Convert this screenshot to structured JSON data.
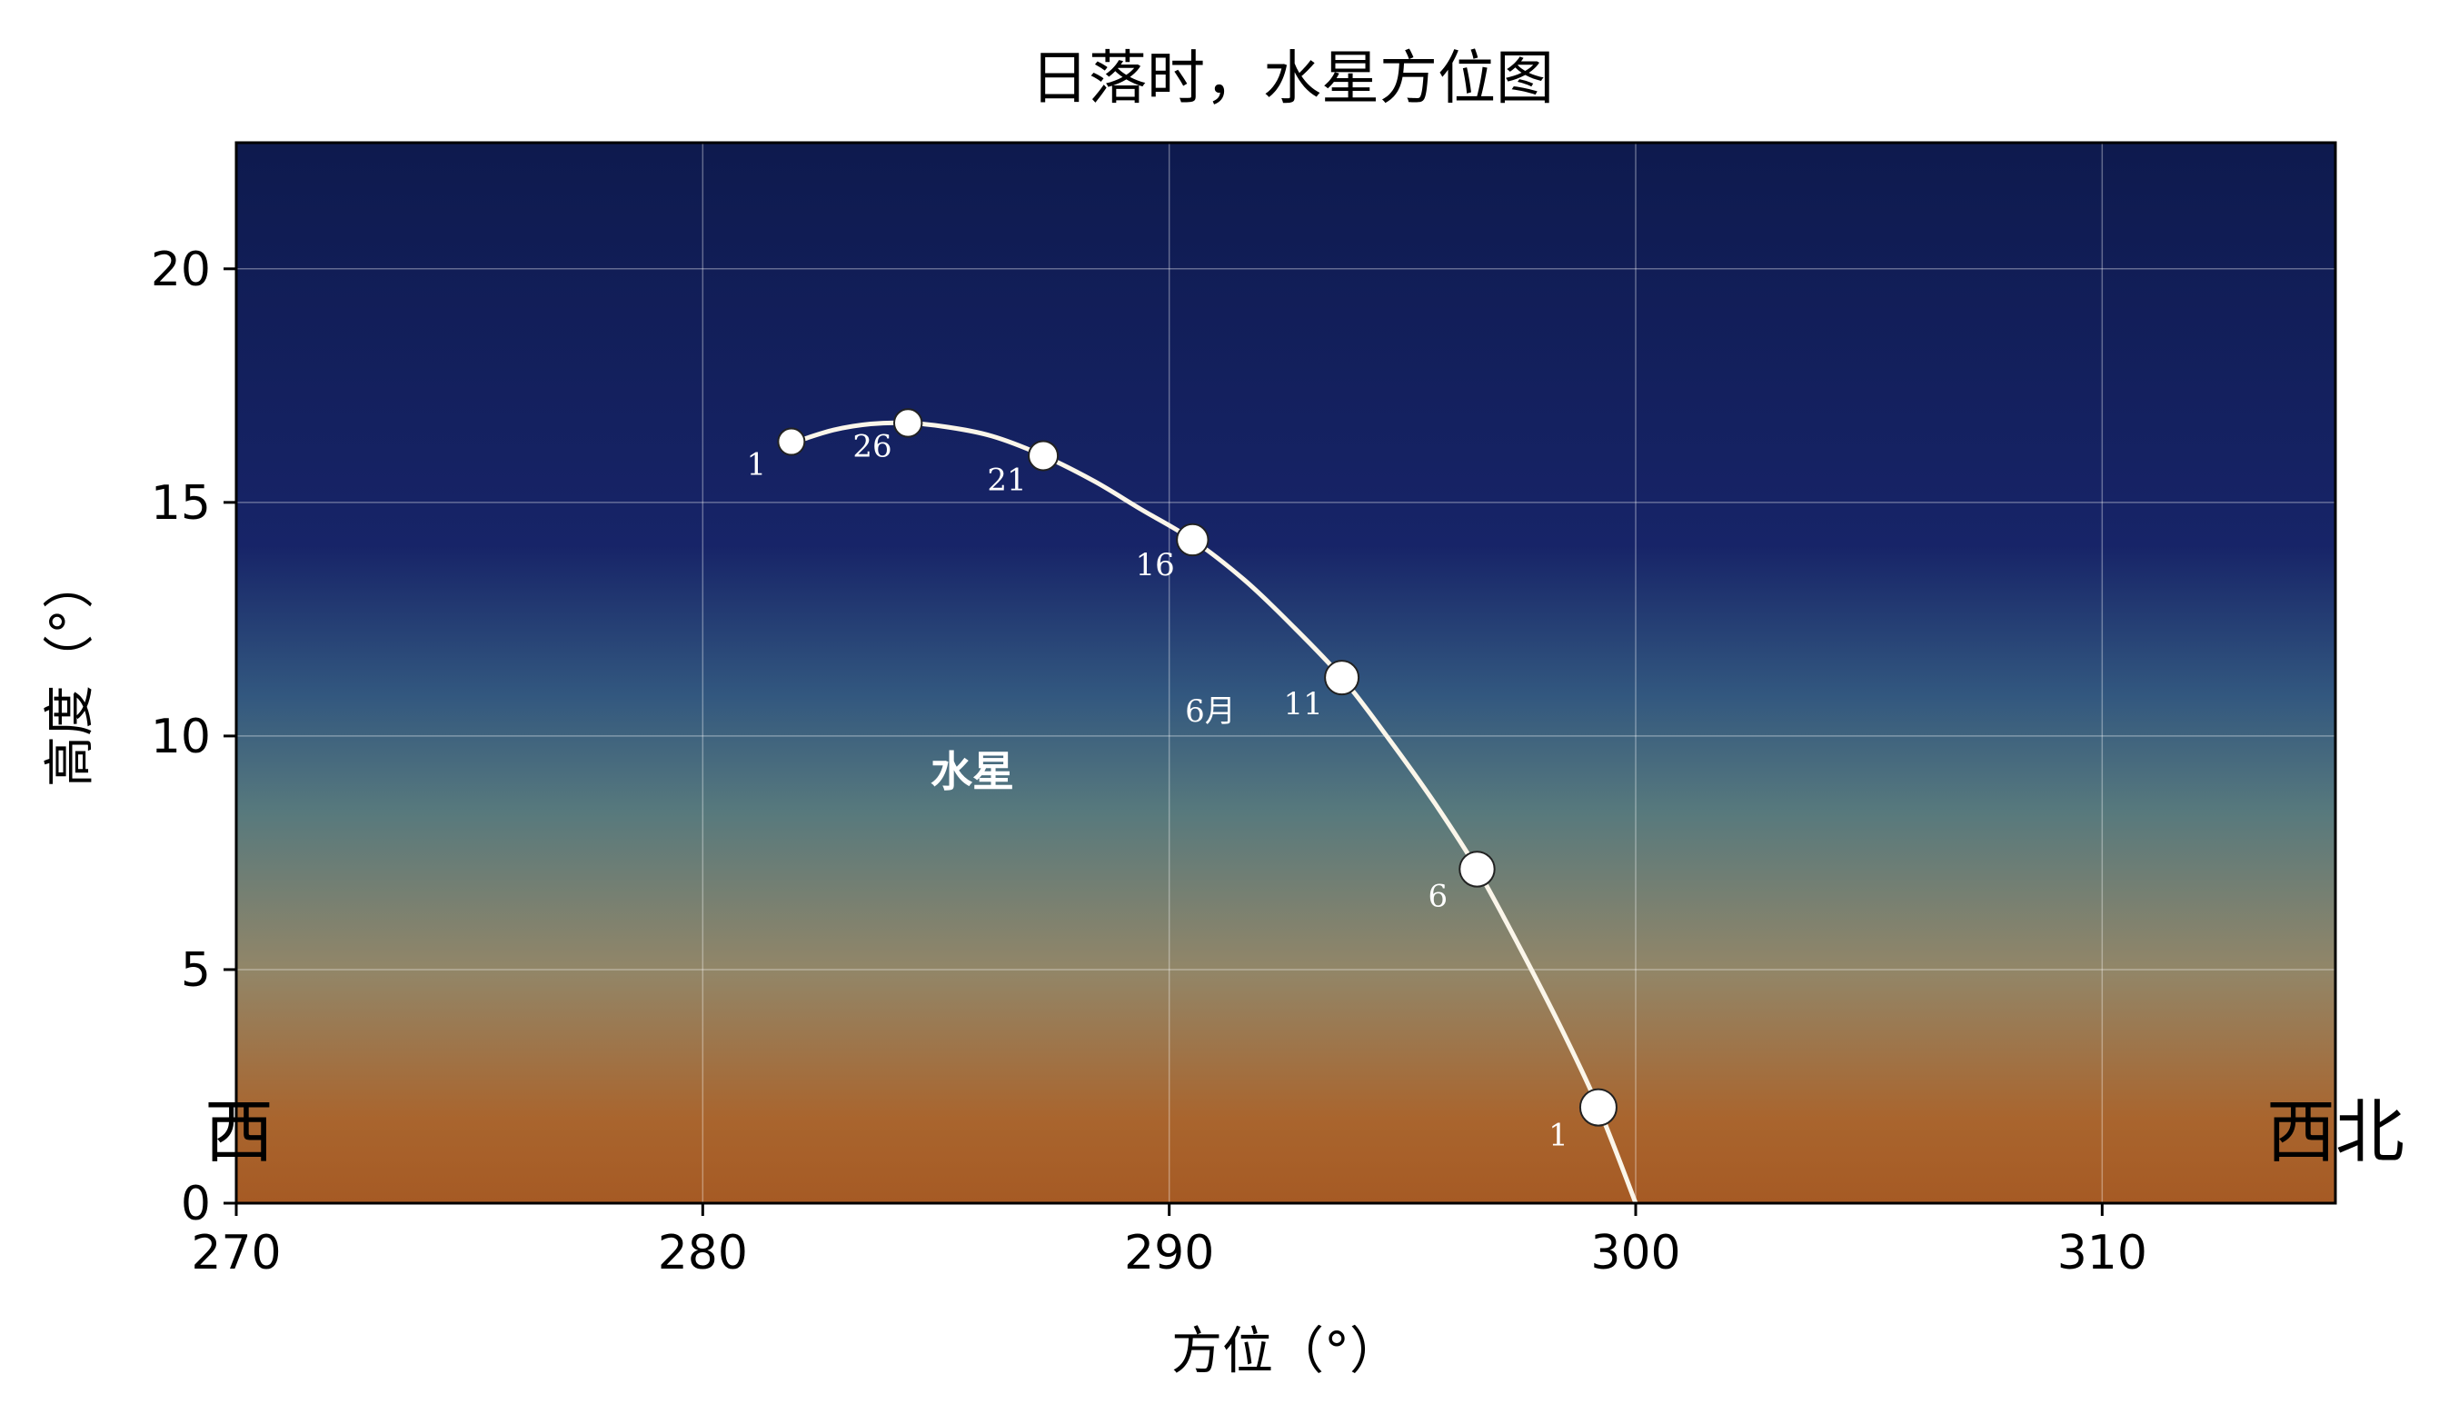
{
  "chart_data": {
    "type": "scatter",
    "title": "日落时，水星方位图",
    "xlabel": "方位（°）",
    "ylabel": "高度（°）",
    "xlim": [
      270,
      315
    ],
    "ylim": [
      0,
      22.7
    ],
    "xticks": [
      "270",
      "280",
      "290",
      "300",
      "310"
    ],
    "yticks": [
      "0",
      "5",
      "10",
      "15",
      "20"
    ],
    "grid": true,
    "curve": [
      [
        282.0,
        16.3
      ],
      [
        282.8,
        16.55
      ],
      [
        283.6,
        16.68
      ],
      [
        284.4,
        16.7
      ],
      [
        285.2,
        16.62
      ],
      [
        286.2,
        16.42
      ],
      [
        287.3,
        16.0
      ],
      [
        288.4,
        15.45
      ],
      [
        289.4,
        14.85
      ],
      [
        290.5,
        14.2
      ],
      [
        291.6,
        13.35
      ],
      [
        292.6,
        12.4
      ],
      [
        293.7,
        11.25
      ],
      [
        294.7,
        9.95
      ],
      [
        295.7,
        8.55
      ],
      [
        296.6,
        7.15
      ],
      [
        297.5,
        5.5
      ],
      [
        298.4,
        3.75
      ],
      [
        299.2,
        2.05
      ],
      [
        300.0,
        0.0
      ]
    ],
    "points": [
      {
        "label": "1",
        "x": 299.2,
        "y": 2.05,
        "size": 1.0
      },
      {
        "label": "6",
        "x": 296.6,
        "y": 7.15,
        "size": 0.92
      },
      {
        "label": "11",
        "x": 293.7,
        "y": 11.25,
        "size": 0.85
      },
      {
        "label": "16",
        "x": 290.5,
        "y": 14.2,
        "size": 0.72
      },
      {
        "label": "21",
        "x": 287.3,
        "y": 16.0,
        "size": 0.6
      },
      {
        "label": "26",
        "x": 284.4,
        "y": 16.7,
        "size": 0.52
      },
      {
        "label": "1",
        "x": 281.9,
        "y": 16.3,
        "size": 0.45
      }
    ],
    "annotations": {
      "month": "6月",
      "planet": "水星",
      "west": "西",
      "northwest": "西北"
    },
    "colors": {
      "sky_top": "#0e1a4e",
      "sky_upper": "#172468",
      "sky_mid": "#32577f",
      "sky_teal": "#57797d",
      "sky_tan": "#928668",
      "sky_orange": "#a9652e",
      "sky_bottom": "#a65a24",
      "curve": "#fbf6ea",
      "marker_fill": "#ffffff",
      "marker_edge": "#222222",
      "text_on_chart": "#ffffff",
      "axis_text": "#000000"
    }
  }
}
